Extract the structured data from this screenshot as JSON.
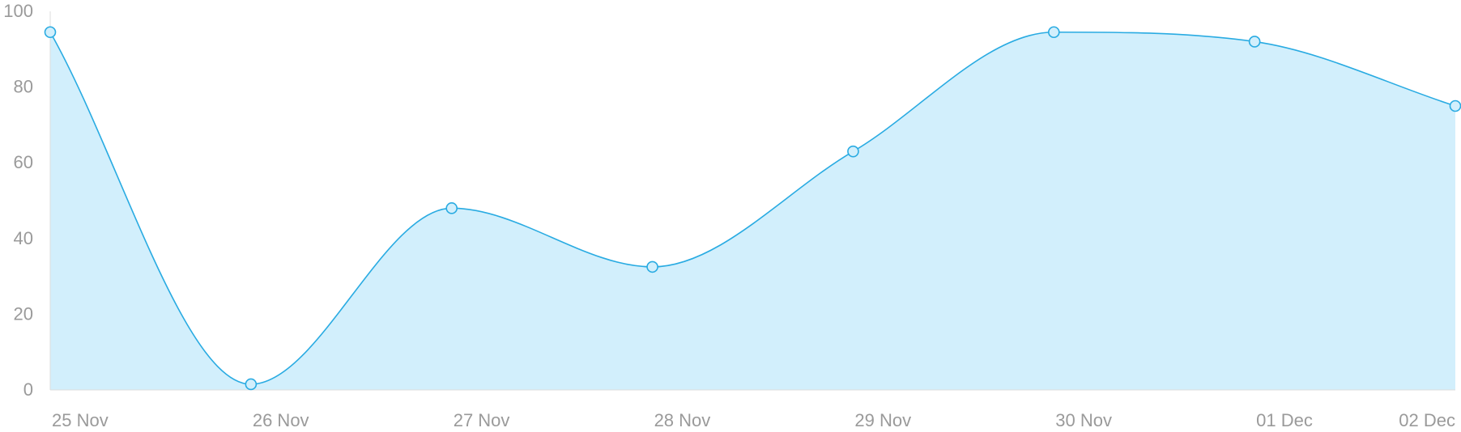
{
  "chart_data": {
    "type": "area",
    "title": "",
    "xlabel": "",
    "ylabel": "",
    "categories": [
      "25 Nov",
      "26 Nov",
      "27 Nov",
      "28 Nov",
      "29 Nov",
      "30 Nov",
      "01 Dec",
      "02 Dec"
    ],
    "series": [
      {
        "values": [
          94.5,
          1.5,
          48,
          32.5,
          63,
          94.5,
          92,
          75
        ]
      }
    ],
    "ylim": [
      0,
      100
    ],
    "yticks": [
      "0",
      "20",
      "40",
      "60",
      "80",
      "100"
    ],
    "grid": false,
    "legend": "none",
    "colors": {
      "line": "#29abe2",
      "fill": "#d2effc",
      "axis": "#dddddd",
      "text": "#9a9a9a"
    }
  }
}
